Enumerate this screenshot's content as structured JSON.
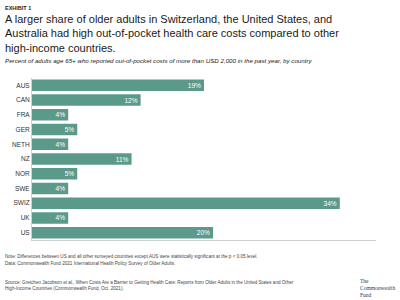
{
  "chart_data": {
    "type": "bar",
    "orientation": "horizontal",
    "exhibit": "EXHIBIT 1",
    "title": "A larger share of older adults in Switzerland, the United States, and Australia had high out-of-pocket health care costs compared to other high-income countries.",
    "subtitle": "Percent of adults age 65+ who reported out-of-pocket costs of more than USD 2,000 in the past year, by country",
    "categories": [
      "AUS",
      "CAN",
      "FRA",
      "GER",
      "NETH",
      "NZ",
      "NOR",
      "SWE",
      "SWIZ",
      "UK",
      "US"
    ],
    "values": [
      19,
      12,
      4,
      5,
      4,
      11,
      5,
      4,
      34,
      4,
      20
    ],
    "value_labels": [
      "19%",
      "12%",
      "4%",
      "5%",
      "4%",
      "11%",
      "5%",
      "4%",
      "34%",
      "4%",
      "20%"
    ],
    "data_labels": true,
    "color": "#5b9a8b",
    "xlim": [
      0,
      38
    ],
    "tick_labels": "y",
    "grid": false,
    "notes": [
      "Note: Differences between US and all other surveyed countries except AUS were statistically significant at the p < 0.05 level.",
      "Data: Commonwealth Fund 2021 International Health Policy Survey of Older Adults."
    ],
    "source": "Source: Gretchen Jacobson et al., When Costs Are a Barrier to Getting Health Care: Reports from Older Adults in the United States and Other High-Income Countries (Commonwealth Fund, Oct. 2021).",
    "logo_text": "The Commonwealth Fund"
  }
}
